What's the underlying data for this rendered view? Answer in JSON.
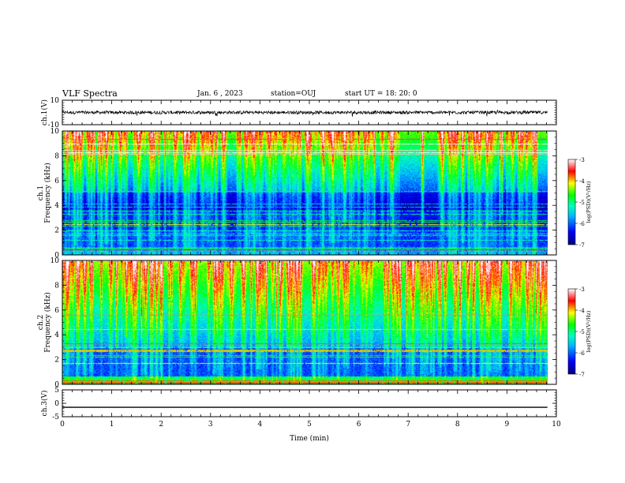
{
  "header": {
    "title": "VLF Spectra",
    "date": "Jan. 6 , 2023",
    "station": "station=OUJ",
    "start": "start UT =  18: 20: 0"
  },
  "chart_data": [
    {
      "type": "line",
      "panel": "waveform-ch1",
      "ylabel": "ch.1(V)",
      "ylim": [
        -10,
        10
      ],
      "yticks": [
        "10",
        "-10"
      ],
      "xlim": [
        0,
        10
      ],
      "description_level": 0
    },
    {
      "type": "heatmap",
      "panel": "spectrogram-ch1",
      "ylabel": "ch.1 Frequency (kHz)",
      "ylim": [
        0,
        10
      ],
      "yticks": [
        "0",
        "2",
        "4",
        "6",
        "8",
        "10"
      ],
      "xlim": [
        0,
        10
      ],
      "colorbar": {
        "label": "log(PSD)(V²/Hz)",
        "range": [
          -7,
          -3
        ],
        "ticks": [
          "-3",
          "-4",
          "-5",
          "-6",
          "-7"
        ]
      }
    },
    {
      "type": "heatmap",
      "panel": "spectrogram-ch2",
      "ylabel": "ch.2 Frequency (kHz)",
      "ylim": [
        0,
        10
      ],
      "yticks": [
        "0",
        "2",
        "4",
        "6",
        "8",
        "10"
      ],
      "xlim": [
        0,
        10
      ],
      "colorbar": {
        "label": "log(PSD)(V²/Hz)",
        "range": [
          -7,
          -3
        ],
        "ticks": [
          "-3",
          "-4",
          "-5",
          "-6",
          "-7"
        ]
      }
    },
    {
      "type": "line",
      "panel": "waveform-ch3",
      "ylabel": "ch.3(V)",
      "ylim": [
        -5,
        5
      ],
      "yticks": [
        "5",
        "0",
        "-5"
      ],
      "xlim": [
        0,
        10
      ],
      "constant_value": -1.5
    }
  ],
  "xaxis": {
    "label": "Time (min)",
    "ticks": [
      "0",
      "1",
      "2",
      "3",
      "4",
      "5",
      "6",
      "7",
      "8",
      "9",
      "10"
    ],
    "data_end": 9.82
  },
  "colors": {
    "colormap": [
      "#000080",
      "#0000ff",
      "#00b4ff",
      "#00ffc0",
      "#00ff00",
      "#ffff00",
      "#ff0000",
      "#ffffff"
    ]
  }
}
